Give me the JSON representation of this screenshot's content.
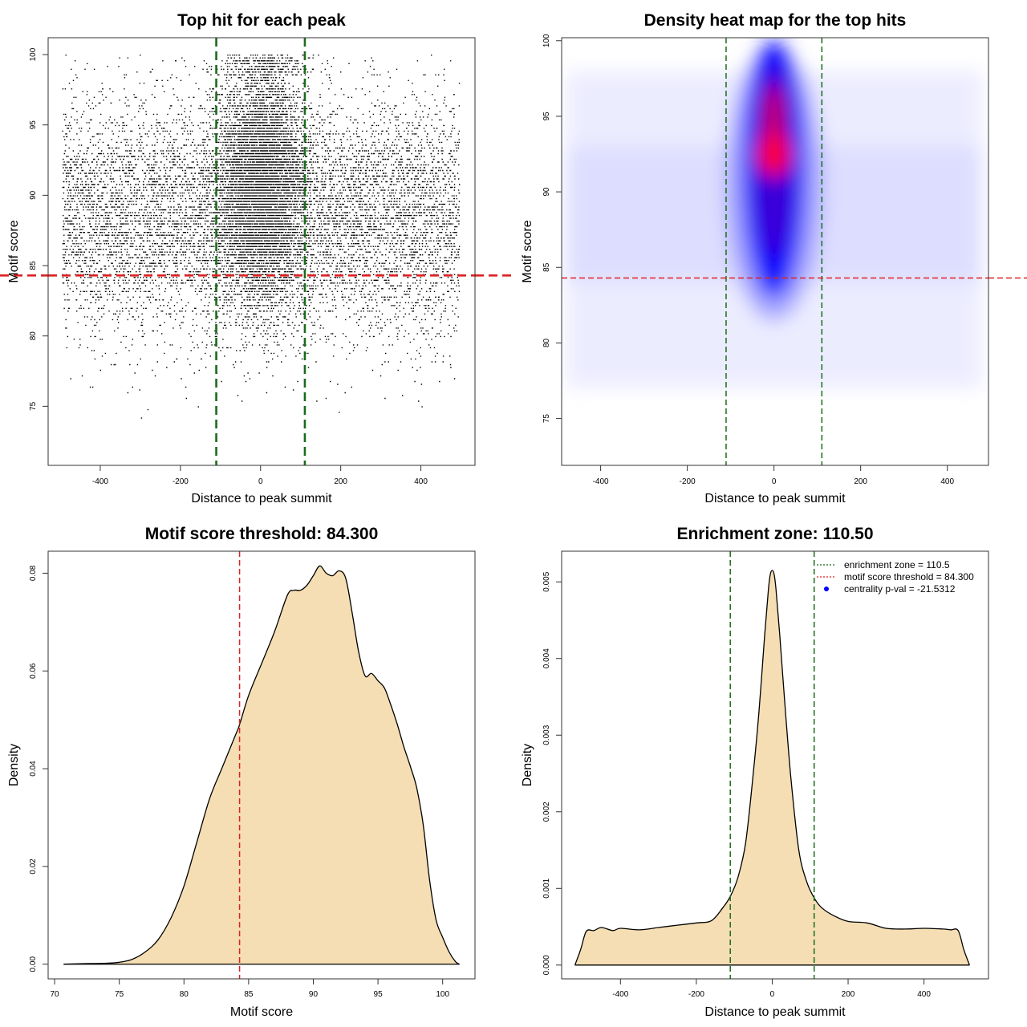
{
  "chart_data": [
    {
      "type": "scatter",
      "title": "Top hit for each peak",
      "xlabel": "Distance to peak summit",
      "ylabel": "Motif score",
      "xlim": [
        -530,
        535
      ],
      "ylim": [
        70.8,
        101.2
      ],
      "xticks": [
        -400,
        -200,
        0,
        200,
        400
      ],
      "yticks": [
        75,
        80,
        85,
        90,
        95,
        100
      ],
      "xtick_labels": [
        "-400",
        "-200",
        "0",
        "200",
        "400"
      ],
      "ytick_labels": [
        "75",
        "80",
        "85",
        "90",
        "95",
        "100"
      ],
      "point_distribution": {
        "x_range": [
          -495,
          495
        ],
        "y_range": [
          72,
          100
        ],
        "center_x": 0,
        "center_sd": 55,
        "approx_points": 16000
      },
      "ref_lines": {
        "vertical": [
          -110.5,
          110.5
        ],
        "horizontal": [
          84.3
        ],
        "colors": {
          "vertical": "#1a6b1a",
          "horizontal": "#dd2222"
        }
      },
      "grid": false
    },
    {
      "type": "heatmap",
      "title": "Density heat map for the top hits",
      "xlabel": "Distance to peak summit",
      "ylabel": "Motif score",
      "xlim": [
        -490,
        495
      ],
      "ylim": [
        71.9,
        100.2
      ],
      "xticks": [
        -400,
        -200,
        0,
        200,
        400
      ],
      "yticks": [
        75,
        80,
        85,
        90,
        95,
        100
      ],
      "xtick_labels": [
        "-400",
        "-200",
        "0",
        "200",
        "400"
      ],
      "ytick_labels": [
        "75",
        "80",
        "85",
        "90",
        "95",
        "100"
      ],
      "density_peak": {
        "x": 0,
        "y": 92.5
      },
      "color_scale": [
        "#ffffff",
        "#0000ff",
        "#ff0000"
      ],
      "ref_lines": {
        "vertical": [
          -110.5,
          110.5
        ],
        "horizontal": [
          84.3
        ],
        "colors": {
          "vertical": "#1a6b1a",
          "horizontal": "#dd2222"
        }
      },
      "grid": false
    },
    {
      "type": "area",
      "title": "Motif score threshold: 84.300",
      "xlabel": "Motif score",
      "ylabel": "Density",
      "xlim": [
        69.5,
        102.5
      ],
      "ylim": [
        -0.003,
        0.0845
      ],
      "xticks": [
        70,
        75,
        80,
        85,
        90,
        95,
        100
      ],
      "yticks": [
        0,
        0.02,
        0.04,
        0.06,
        0.08
      ],
      "xtick_labels": [
        "70",
        "75",
        "80",
        "85",
        "90",
        "95",
        "100"
      ],
      "ytick_labels": [
        "0.00",
        "0.02",
        "0.04",
        "0.06",
        "0.08"
      ],
      "x": [
        70.7,
        72,
        74,
        75,
        76,
        77,
        78,
        79,
        80,
        81,
        82,
        83,
        84,
        84.3,
        85,
        86,
        87,
        88,
        88.5,
        89,
        89.5,
        90,
        90.5,
        91,
        91.5,
        92,
        92.5,
        93,
        93.5,
        94,
        94.5,
        95,
        95.5,
        96,
        96.5,
        97,
        97.5,
        98,
        98.5,
        99,
        99.5,
        100,
        100.5,
        101,
        101.3
      ],
      "values": [
        0.0,
        0.0001,
        0.0002,
        0.0004,
        0.001,
        0.0025,
        0.005,
        0.0095,
        0.016,
        0.025,
        0.034,
        0.0405,
        0.047,
        0.049,
        0.055,
        0.0615,
        0.068,
        0.0755,
        0.0765,
        0.0765,
        0.0775,
        0.0795,
        0.0815,
        0.08,
        0.0795,
        0.0805,
        0.079,
        0.072,
        0.064,
        0.059,
        0.0595,
        0.058,
        0.0565,
        0.053,
        0.049,
        0.0445,
        0.0405,
        0.036,
        0.0285,
        0.017,
        0.009,
        0.0055,
        0.0025,
        0.0005,
        0.0
      ],
      "fill_color": "#f5deb3",
      "ref_lines": {
        "vertical": [
          84.3
        ],
        "colors": {
          "vertical": "#dd2222"
        }
      },
      "grid": false
    },
    {
      "type": "area",
      "title": "Enrichment zone: 110.50",
      "xlabel": "Distance to peak summit",
      "ylabel": "Density",
      "xlim": [
        -555,
        570
      ],
      "ylim": [
        -0.00018,
        0.0054
      ],
      "xticks": [
        -400,
        -200,
        0,
        200,
        400
      ],
      "yticks": [
        0,
        0.001,
        0.002,
        0.003,
        0.004,
        0.005
      ],
      "xtick_labels": [
        "-400",
        "-200",
        "0",
        "200",
        "400"
      ],
      "ytick_labels": [
        "0.000",
        "0.001",
        "0.002",
        "0.003",
        "0.004",
        "0.005"
      ],
      "x": [
        -520,
        -505,
        -490,
        -470,
        -450,
        -420,
        -400,
        -350,
        -300,
        -250,
        -200,
        -160,
        -130,
        -110,
        -90,
        -70,
        -50,
        -35,
        -20,
        -10,
        -5,
        0,
        5,
        10,
        20,
        35,
        50,
        70,
        90,
        110,
        130,
        160,
        200,
        250,
        300,
        350,
        400,
        450,
        470,
        490,
        505,
        520
      ],
      "values": [
        0.0,
        0.0002,
        0.00044,
        0.00045,
        0.00049,
        0.00045,
        0.00048,
        0.00046,
        0.00049,
        0.00052,
        0.00055,
        0.00058,
        0.00075,
        0.0009,
        0.00115,
        0.0016,
        0.0025,
        0.0033,
        0.0043,
        0.0049,
        0.0051,
        0.00515,
        0.0051,
        0.0049,
        0.0043,
        0.0033,
        0.0024,
        0.0015,
        0.0011,
        0.00088,
        0.00075,
        0.00065,
        0.00057,
        0.00055,
        0.00048,
        0.00047,
        0.00048,
        0.00047,
        0.00046,
        0.00045,
        0.0002,
        0.0
      ],
      "fill_color": "#f5deb3",
      "ref_lines": {
        "vertical": [
          -110.5,
          110.5
        ],
        "colors": {
          "vertical": "#1a6b1a"
        }
      },
      "legend": {
        "position": "top-right",
        "entries": [
          {
            "label": "enrichment zone = 110.5",
            "marker": "dotted-line",
            "color": "#1a6b1a"
          },
          {
            "label": "motif score threshold = 84.300",
            "marker": "dotted-line",
            "color": "#dd2222"
          },
          {
            "label": "centrality p-val = -21.5312",
            "marker": "dot",
            "color": "#0000ff"
          }
        ]
      },
      "grid": false
    }
  ]
}
